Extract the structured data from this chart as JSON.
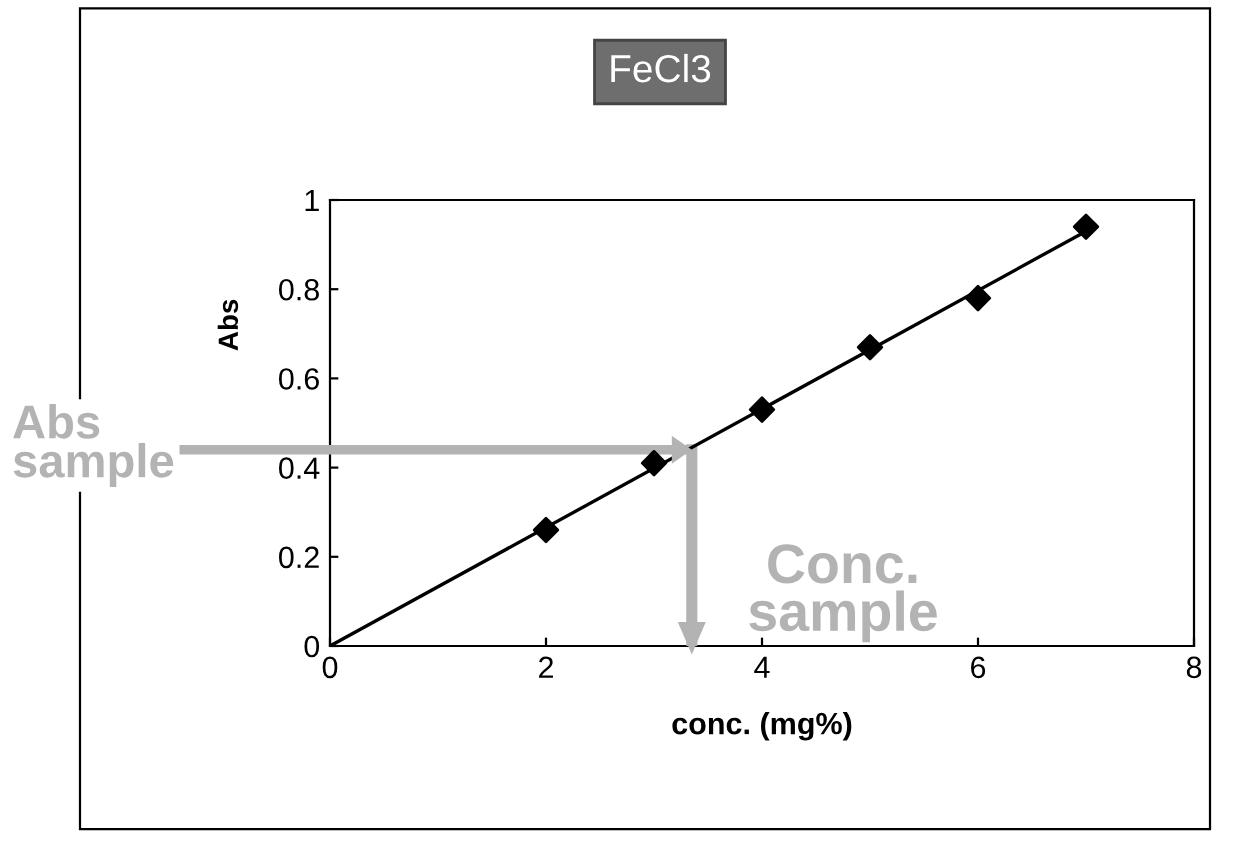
{
  "chart_data": {
    "type": "scatter",
    "title": "FeCl3",
    "xlabel": "conc. (mg%)",
    "ylabel": "Abs",
    "series": [
      {
        "color": "#000000",
        "marker": "diamond",
        "x": [
          2,
          3,
          4,
          5,
          6,
          7
        ],
        "values": [
          0.26,
          0.41,
          0.53,
          0.67,
          0.78,
          0.94
        ]
      },
      {
        "type": "line",
        "color": "#000000",
        "marker": "none",
        "x": [
          0,
          7
        ],
        "values": [
          0,
          0.93
        ]
      }
    ],
    "ref_lines": [
      {
        "axis": "y",
        "value": 0.44,
        "label": "Abs sample",
        "color": "#b3b3b3"
      },
      {
        "axis": "x",
        "value": 3.35,
        "label": "Conc. sample",
        "color": "#b3b3b3"
      }
    ],
    "xlim": [
      0,
      8
    ],
    "xticks": [
      0,
      2,
      4,
      6,
      8
    ],
    "ylim": [
      0,
      1
    ],
    "yticks": [
      0,
      0.2,
      0.4,
      0.6,
      0.8,
      1
    ],
    "grid": false,
    "legend": false
  }
}
